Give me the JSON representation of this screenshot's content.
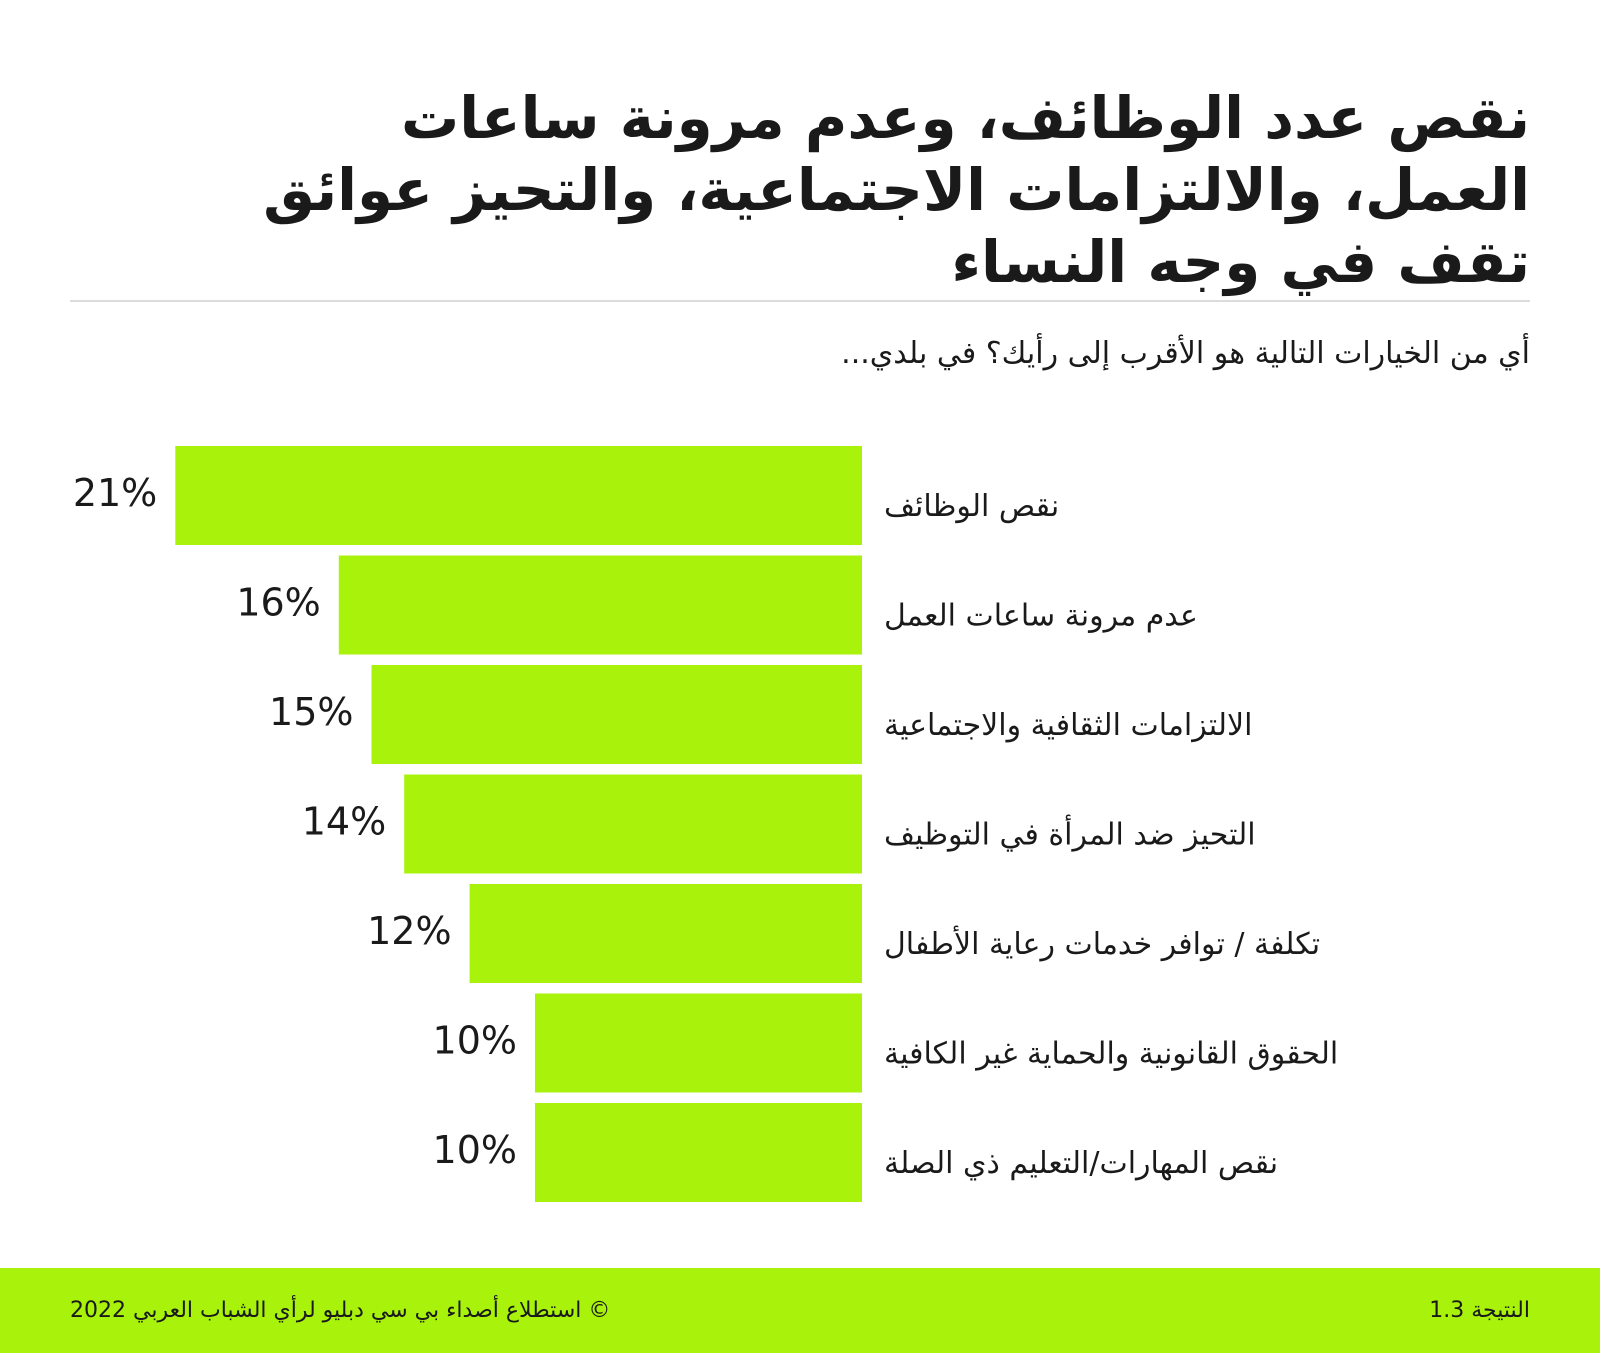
{
  "header": {
    "title_lines": [
      "نقص عدد الوظائف، وعدم مرونة ساعات",
      "العمل، والالتزامات الاجتماعية، والتحيز عوائق",
      "تقف في وجه النساء"
    ],
    "question": "أي من الخيارات التالية هو الأقرب إلى رأيك؟ في بلدي..."
  },
  "chart_data": {
    "type": "bar",
    "orientation": "horizontal",
    "categories": [
      "نقص الوظائف",
      "عدم مرونة ساعات العمل",
      "الالتزامات الثقافية والاجتماعية",
      "التحيز ضد المرأة في التوظيف",
      "تكلفة / توافر خدمات رعاية الأطفال",
      "الحقوق القانونية والحماية غير الكافية",
      "نقص المهارات/التعليم ذي الصلة"
    ],
    "values": [
      21,
      16,
      15,
      14,
      12,
      10,
      10
    ],
    "value_labels": [
      "21%",
      "16%",
      "15%",
      "14%",
      "12%",
      "10%",
      "10%"
    ],
    "bar_color": "#a8f20b",
    "grid": false,
    "legend": "none"
  },
  "footer": {
    "source": "© استطلاع أصداء بي سي دبليو لرأي الشباب العربي 2022",
    "finding": "النتيجة 1.3"
  },
  "colors": {
    "accent": "#a8f20b",
    "text": "#1a1a1a",
    "rule": "#dcdcdc"
  }
}
